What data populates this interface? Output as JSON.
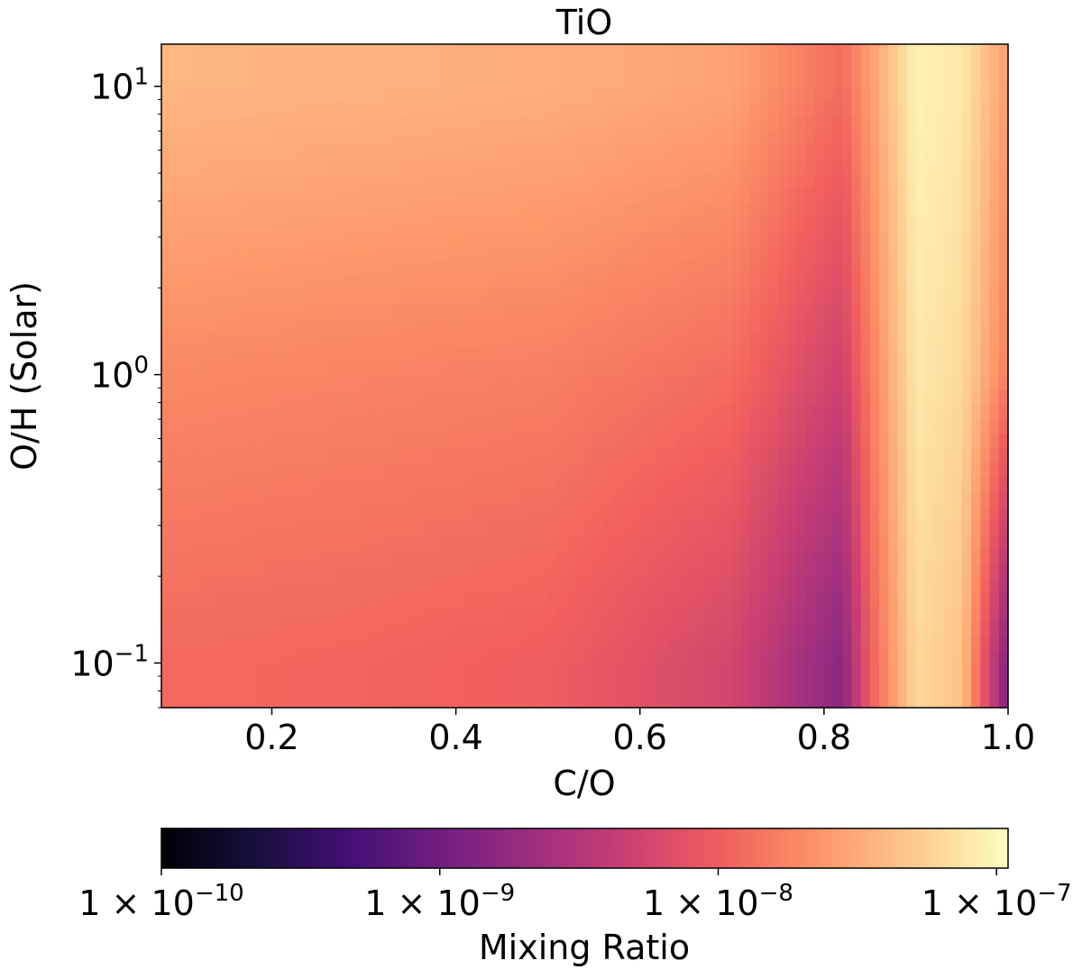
{
  "chart_data": {
    "type": "heatmap",
    "title": "TiO",
    "xlabel": "C/O",
    "ylabel": "O/H (Solar)",
    "x_range": [
      0.08,
      1.0
    ],
    "y_range": [
      0.07,
      14
    ],
    "y_scale": "log",
    "x_ticks": [
      {
        "value": 0.2,
        "label": "0.2"
      },
      {
        "value": 0.4,
        "label": "0.4"
      },
      {
        "value": 0.6,
        "label": "0.6"
      },
      {
        "value": 0.8,
        "label": "0.8"
      },
      {
        "value": 1.0,
        "label": "1.0"
      }
    ],
    "y_ticks": [
      {
        "value": 0.1,
        "base": "10",
        "exp": "−1"
      },
      {
        "value": 1,
        "base": "10",
        "exp": "0"
      },
      {
        "value": 10,
        "base": "10",
        "exp": "1"
      }
    ],
    "grid": false,
    "colormap": "magma",
    "colormap_stops": [
      "#000004",
      "#180f3d",
      "#440f76",
      "#721f81",
      "#9e2f7f",
      "#cd4071",
      "#f1605d",
      "#fd9668",
      "#feca8d",
      "#fcfdbf"
    ],
    "colorbar": {
      "label": "Mixing Ratio",
      "scale": "log",
      "range": [
        1e-10,
        1.1e-07
      ],
      "position": "bottom",
      "ticks": [
        {
          "value": 1e-10,
          "prefix": "1 × 10",
          "exp": "−10"
        },
        {
          "value": 1e-09,
          "prefix": "1 × 10",
          "exp": "−9"
        },
        {
          "value": 1e-08,
          "prefix": "1 × 10",
          "exp": "−8"
        },
        {
          "value": 1e-07,
          "prefix": "1 × 10",
          "exp": "−7"
        }
      ]
    },
    "field_samples": {
      "note_units": "log10 of mixing ratio at sampled C/O (columns) and O/H (rows)",
      "x": [
        0.1,
        0.3,
        0.5,
        0.7,
        0.82,
        0.85,
        0.9,
        0.95,
        1.0
      ],
      "y": [
        10,
        1,
        0.1
      ],
      "log10_values": [
        [
          -7.42,
          -7.45,
          -7.48,
          -7.55,
          -7.9,
          -7.6,
          -7.03,
          -7.1,
          -7.6
        ],
        [
          -7.72,
          -7.75,
          -7.78,
          -7.9,
          -8.3,
          -7.8,
          -7.1,
          -7.2,
          -7.8
        ],
        [
          -7.92,
          -7.95,
          -8.0,
          -8.25,
          -8.8,
          -8.0,
          -7.2,
          -7.35,
          -8.9
        ]
      ]
    }
  }
}
